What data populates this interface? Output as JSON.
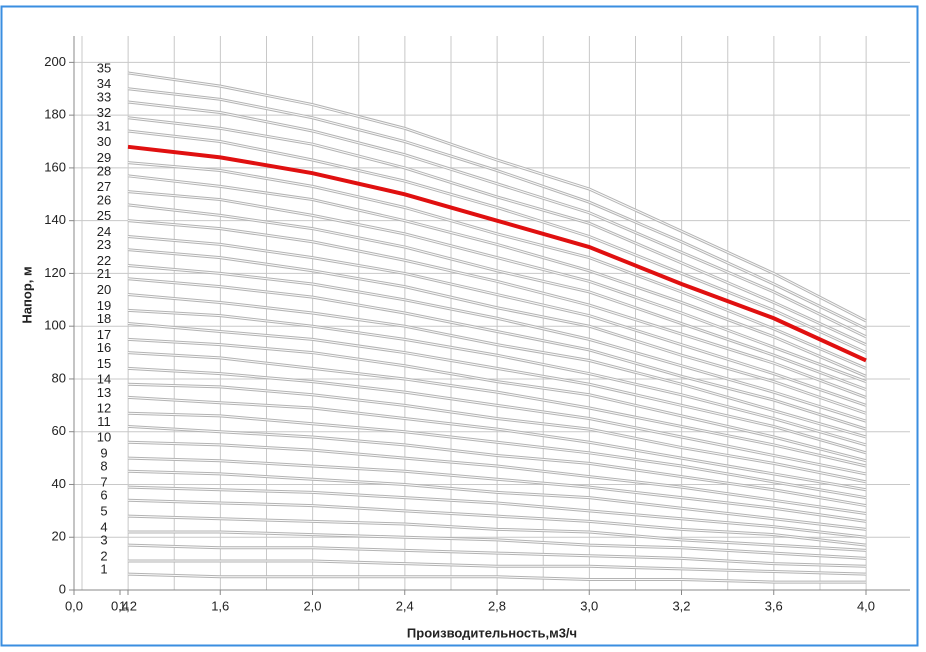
{
  "chart_data": {
    "type": "line",
    "xlabel": "Производительность,м3/ч",
    "ylabel": "Напор, м",
    "categories": [
      "0,0",
      "0,4",
      "1,2",
      "1,6",
      "2,0",
      "2,4",
      "2,8",
      "3,0",
      "3,2",
      "3,6",
      "4,0"
    ],
    "ylim": [
      0,
      210
    ],
    "yticks": [
      0,
      20,
      40,
      60,
      80,
      100,
      120,
      140,
      160,
      180,
      200
    ],
    "grid": true,
    "series": [
      {
        "name": "1",
        "color": "#b4b4b4",
        "values": [
          null,
          null,
          6,
          5,
          5,
          5,
          5,
          4,
          4,
          3,
          3
        ]
      },
      {
        "name": "2",
        "color": "#b4b4b4",
        "values": [
          null,
          null,
          11,
          11,
          11,
          10,
          9,
          9,
          8,
          7,
          6
        ]
      },
      {
        "name": "3",
        "color": "#b4b4b4",
        "values": [
          null,
          null,
          17,
          16,
          16,
          15,
          14,
          13,
          12,
          10,
          9
        ]
      },
      {
        "name": "4",
        "color": "#b4b4b4",
        "values": [
          null,
          null,
          22,
          22,
          21,
          20,
          19,
          17,
          16,
          14,
          12
        ]
      },
      {
        "name": "5",
        "color": "#b4b4b4",
        "values": [
          null,
          null,
          28,
          27,
          26,
          25,
          23,
          22,
          19,
          17,
          15
        ]
      },
      {
        "name": "6",
        "color": "#b4b4b4",
        "values": [
          null,
          null,
          34,
          33,
          32,
          30,
          28,
          26,
          23,
          21,
          17
        ]
      },
      {
        "name": "7",
        "color": "#b4b4b4",
        "values": [
          null,
          null,
          39,
          38,
          37,
          35,
          33,
          30,
          27,
          24,
          20
        ]
      },
      {
        "name": "8",
        "color": "#b4b4b4",
        "values": [
          null,
          null,
          45,
          44,
          42,
          40,
          37,
          35,
          31,
          27,
          23
        ]
      },
      {
        "name": "9",
        "color": "#b4b4b4",
        "values": [
          null,
          null,
          50,
          49,
          47,
          45,
          42,
          39,
          35,
          31,
          26
        ]
      },
      {
        "name": "10",
        "color": "#b4b4b4",
        "values": [
          null,
          null,
          56,
          55,
          53,
          50,
          47,
          43,
          39,
          34,
          29
        ]
      },
      {
        "name": "11",
        "color": "#b4b4b4",
        "values": [
          null,
          null,
          62,
          60,
          58,
          55,
          51,
          48,
          43,
          38,
          32
        ]
      },
      {
        "name": "12",
        "color": "#b4b4b4",
        "values": [
          null,
          null,
          67,
          66,
          63,
          60,
          56,
          52,
          47,
          41,
          35
        ]
      },
      {
        "name": "13",
        "color": "#b4b4b4",
        "values": [
          null,
          null,
          73,
          71,
          69,
          65,
          61,
          56,
          50,
          44,
          38
        ]
      },
      {
        "name": "14",
        "color": "#b4b4b4",
        "values": [
          null,
          null,
          78,
          77,
          74,
          70,
          65,
          61,
          54,
          48,
          41
        ]
      },
      {
        "name": "15",
        "color": "#b4b4b4",
        "values": [
          null,
          null,
          84,
          82,
          79,
          75,
          70,
          65,
          58,
          51,
          44
        ]
      },
      {
        "name": "16",
        "color": "#b4b4b4",
        "values": [
          null,
          null,
          90,
          88,
          84,
          80,
          75,
          69,
          62,
          55,
          47
        ]
      },
      {
        "name": "17",
        "color": "#b4b4b4",
        "values": [
          null,
          null,
          95,
          93,
          90,
          85,
          79,
          74,
          66,
          58,
          49
        ]
      },
      {
        "name": "18",
        "color": "#b4b4b4",
        "values": [
          null,
          null,
          101,
          98,
          95,
          90,
          84,
          78,
          70,
          62,
          52
        ]
      },
      {
        "name": "19",
        "color": "#b4b4b4",
        "values": [
          null,
          null,
          106,
          104,
          100,
          95,
          89,
          82,
          74,
          65,
          55
        ]
      },
      {
        "name": "20",
        "color": "#b4b4b4",
        "values": [
          null,
          null,
          112,
          109,
          105,
          100,
          93,
          87,
          78,
          68,
          58
        ]
      },
      {
        "name": "21",
        "color": "#b4b4b4",
        "values": [
          null,
          null,
          118,
          115,
          111,
          105,
          98,
          91,
          81,
          72,
          61
        ]
      },
      {
        "name": "22",
        "color": "#b4b4b4",
        "values": [
          null,
          null,
          123,
          120,
          116,
          110,
          103,
          95,
          85,
          75,
          64
        ]
      },
      {
        "name": "23",
        "color": "#b4b4b4",
        "values": [
          null,
          null,
          129,
          126,
          121,
          115,
          107,
          100,
          89,
          79,
          67
        ]
      },
      {
        "name": "24",
        "color": "#b4b4b4",
        "values": [
          null,
          null,
          134,
          131,
          126,
          120,
          112,
          104,
          93,
          82,
          70
        ]
      },
      {
        "name": "25",
        "color": "#b4b4b4",
        "values": [
          null,
          null,
          140,
          137,
          132,
          125,
          117,
          108,
          97,
          86,
          73
        ]
      },
      {
        "name": "26",
        "color": "#b4b4b4",
        "values": [
          null,
          null,
          146,
          142,
          137,
          130,
          121,
          113,
          101,
          89,
          76
        ]
      },
      {
        "name": "27",
        "color": "#b4b4b4",
        "values": [
          null,
          null,
          151,
          148,
          142,
          135,
          126,
          117,
          105,
          92,
          79
        ]
      },
      {
        "name": "28",
        "color": "#b4b4b4",
        "values": [
          null,
          null,
          157,
          153,
          148,
          140,
          131,
          121,
          109,
          96,
          81
        ]
      },
      {
        "name": "29",
        "color": "#b4b4b4",
        "values": [
          null,
          null,
          162,
          159,
          153,
          145,
          135,
          126,
          113,
          99,
          84
        ]
      },
      {
        "name": "30",
        "color": "#e01010",
        "values": [
          null,
          null,
          168,
          164,
          158,
          150,
          140,
          130,
          116,
          103,
          87
        ]
      },
      {
        "name": "31",
        "color": "#b4b4b4",
        "values": [
          null,
          null,
          174,
          170,
          163,
          155,
          145,
          134,
          120,
          106,
          90
        ]
      },
      {
        "name": "32",
        "color": "#b4b4b4",
        "values": [
          null,
          null,
          179,
          175,
          169,
          160,
          149,
          139,
          124,
          109,
          93
        ]
      },
      {
        "name": "33",
        "color": "#b4b4b4",
        "values": [
          null,
          null,
          185,
          181,
          174,
          165,
          154,
          143,
          128,
          113,
          96
        ]
      },
      {
        "name": "34",
        "color": "#b4b4b4",
        "values": [
          null,
          null,
          190,
          186,
          179,
          170,
          159,
          147,
          132,
          116,
          99
        ]
      },
      {
        "name": "35",
        "color": "#b4b4b4",
        "values": [
          null,
          null,
          196,
          191,
          184,
          175,
          163,
          152,
          136,
          120,
          102
        ]
      }
    ]
  }
}
